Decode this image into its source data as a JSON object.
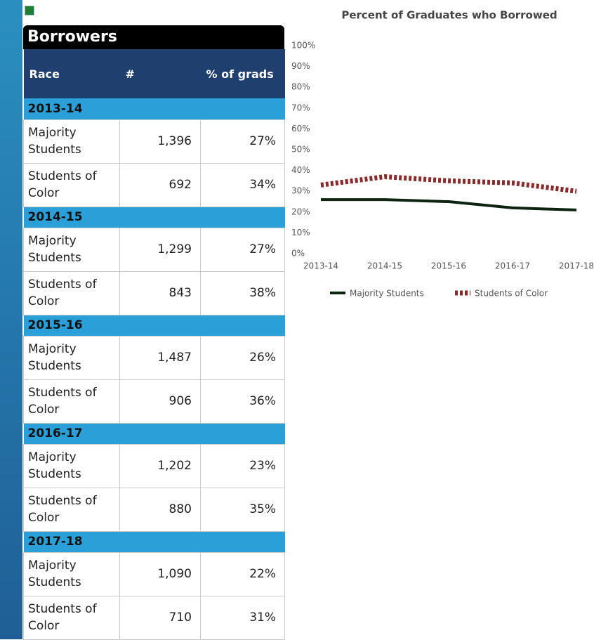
{
  "table": {
    "title": "Borrowers",
    "columns": [
      "Race",
      "#",
      "% of grads"
    ],
    "groups": [
      {
        "label": "2013-14",
        "rows": [
          [
            "Majority Students",
            "1,396",
            "27%"
          ],
          [
            "Students of Color",
            "692",
            "34%"
          ]
        ]
      },
      {
        "label": "2014-15",
        "rows": [
          [
            "Majority Students",
            "1,299",
            "27%"
          ],
          [
            "Students of Color",
            "843",
            "38%"
          ]
        ]
      },
      {
        "label": "2015-16",
        "rows": [
          [
            "Majority Students",
            "1,487",
            "26%"
          ],
          [
            "Students of Color",
            "906",
            "36%"
          ]
        ]
      },
      {
        "label": "2016-17",
        "rows": [
          [
            "Majority Students",
            "1,202",
            "23%"
          ],
          [
            "Students of Color",
            "880",
            "35%"
          ]
        ]
      },
      {
        "label": "2017-18",
        "rows": [
          [
            "Majority Students",
            "1,090",
            "22%"
          ],
          [
            "Students of Color",
            "710",
            "31%"
          ]
        ]
      }
    ]
  },
  "chart_data": {
    "type": "line",
    "title": "Percent of Graduates who Borrowed",
    "categories": [
      "2013-14",
      "2014-15",
      "2015-16",
      "2016-17",
      "2017-18"
    ],
    "series": [
      {
        "name": "Majority Students",
        "color": "#0d2411",
        "values": [
          27,
          27,
          26,
          23,
          22
        ]
      },
      {
        "name": "Students of Color",
        "color": "#8b2a2a",
        "values": [
          34,
          38,
          36,
          35,
          31
        ]
      }
    ],
    "ylim": [
      0,
      100
    ],
    "yticks": [
      {
        "value": 0,
        "label": "0%"
      },
      {
        "value": 10,
        "label": "10%"
      },
      {
        "value": 20,
        "label": "20%"
      },
      {
        "value": 30,
        "label": "30%"
      },
      {
        "value": 40,
        "label": "40%"
      },
      {
        "value": 50,
        "label": "50%"
      },
      {
        "value": 60,
        "label": "60%"
      },
      {
        "value": 70,
        "label": "70%"
      },
      {
        "value": 80,
        "label": "80%"
      },
      {
        "value": 90,
        "label": "90%"
      },
      {
        "value": 100,
        "label": "100%"
      }
    ],
    "legend": "bottom"
  }
}
